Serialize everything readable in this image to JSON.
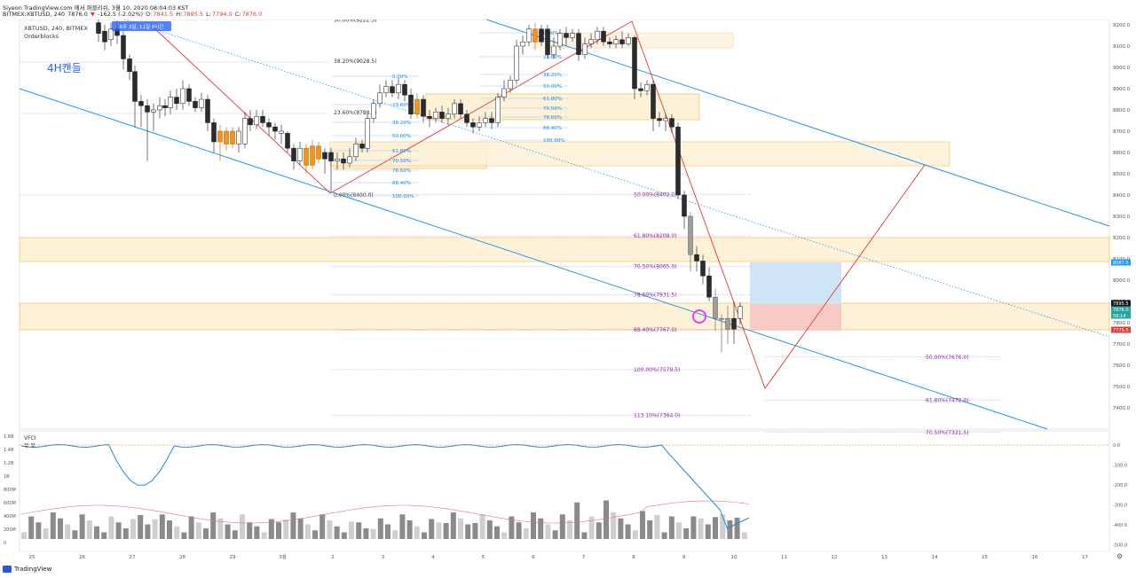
{
  "header": {
    "line1": "Siyeon TradingView.com 에서 퍼블리쉬, 3월 10, 2020 08:04:03 KST",
    "symbol": "BITMEX:XBTUSD, 240",
    "last": "7876.0",
    "change_arrow": "▼",
    "change": "-162.5 (-2.02%)",
    "ohlc": {
      "o_label": "O:",
      "o": "7841.5",
      "h_label": "H:",
      "h": "7895.5",
      "l_label": "L:",
      "l": "7794.0",
      "c_label": "C:",
      "c": "7876.0"
    }
  },
  "chart": {
    "legend_line1": "XBTUSD, 240, BITMEX",
    "legend_line2": "Orderblocks",
    "badge": "6주 3일, 11일 8시간",
    "candle_note": "4H캔들",
    "colors": {
      "accent": "#2962ff",
      "up": "#ffffff",
      "down": "#131722",
      "orange": "#f7931a",
      "fib": "#9c27b0",
      "trend": "#2196f3",
      "red": "#e53935",
      "zone": "#fdf2d8",
      "zone_border": "#f5c46b",
      "long_tp": "#cfe5f7",
      "long_sl": "#f7cbc3"
    },
    "price_labels": [
      "9200.0",
      "9100.0",
      "9000.0",
      "8900.0",
      "8800.0",
      "8700.0",
      "8600.0",
      "8500.0",
      "8400.0",
      "8300.0",
      "8200.0",
      "8100.0",
      "8000.0",
      "7900.0",
      "7800.0",
      "7700.0",
      "7600.0",
      "7500.0",
      "7400.0"
    ],
    "price_badges": [
      {
        "text": "8087.0",
        "color": "#2196f3"
      },
      {
        "text": "7895.5",
        "color": "#131722"
      },
      {
        "text": "7876.0",
        "color": "#26a69a"
      },
      {
        "text": "59:14",
        "color": "#26a69a"
      },
      {
        "text": "7775.5",
        "color": "#e53935"
      }
    ],
    "date_labels": [
      "25",
      "26",
      "27",
      "28",
      "29",
      "3월",
      "2",
      "3",
      "4",
      "5",
      "6",
      "7",
      "8",
      "9",
      "10",
      "11",
      "12",
      "13",
      "14",
      "15",
      "16",
      "17"
    ],
    "fib_main": [
      {
        "text": "50.00%(9222.5)",
        "price": 9222.5
      },
      {
        "text": "38.20%(9028.5)",
        "price": 9028.5
      },
      {
        "text": "23.60%(8788.0)",
        "price": 8788.0
      },
      {
        "text": "0.00%(8400.0)",
        "price": 8400.0
      }
    ],
    "fib_small_left": [
      "0.00%",
      "23.60%",
      "38.20%",
      "50.00%",
      "61.80%",
      "70.50%",
      "78.60%",
      "88.40%",
      "100.00%"
    ],
    "fib_small_right": [
      "0.00%",
      "23.60%",
      "38.20%",
      "50.00%",
      "61.80%",
      "70.50%",
      "78.60%",
      "88.40%",
      "100.00%"
    ],
    "fib_right": [
      {
        "text": "50.00%(8402.0)",
        "price": 8402.0
      },
      {
        "text": "61.80%(8208.0)",
        "price": 8208.0
      },
      {
        "text": "70.50%(8065.0)",
        "price": 8065.0
      },
      {
        "text": "78.60%(7931.5)",
        "price": 7931.5
      },
      {
        "text": "88.40%(7767.0)",
        "price": 7767.0
      },
      {
        "text": "100.00%(7579.5)",
        "price": 7579.5
      },
      {
        "text": "113.10%(7364.0)",
        "price": 7364.0
      }
    ],
    "fib_ext": [
      {
        "text": "50.00%(7676.0)",
        "price": 7676.0
      },
      {
        "text": "61.80%(7472.0)",
        "price": 7472.0
      },
      {
        "text": "70.50%(7321.5)",
        "price": 7321.5
      }
    ]
  },
  "indicator": {
    "name": "VFCI",
    "values_tag": "무 무",
    "left_labels": [
      "1.6B",
      "1.4B",
      "1.2B",
      "1B",
      "800M",
      "600M",
      "400M",
      "200M",
      "0"
    ],
    "right_labels": [
      "0.0",
      "-100.0",
      "-200.0",
      "-300.0",
      "-400.0",
      "-500.0"
    ]
  },
  "footer": {
    "brand": "TradingView"
  }
}
